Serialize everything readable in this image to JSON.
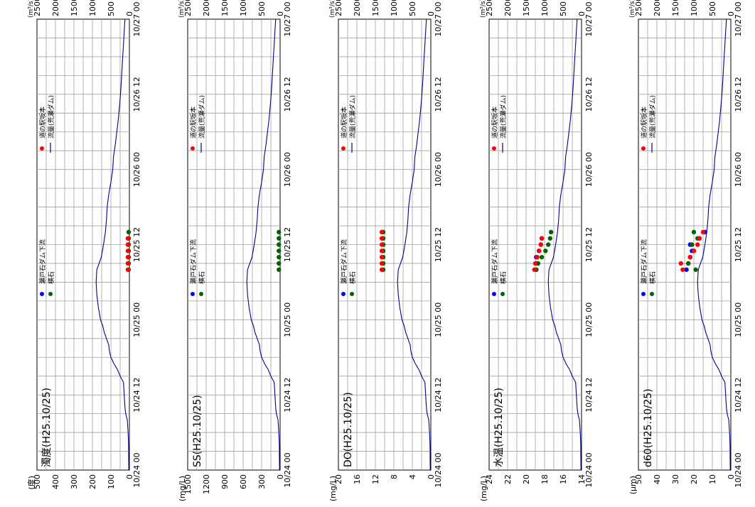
{
  "page": {
    "time_ticks": [
      "10/24 00",
      "10/24 12",
      "10/25 00",
      "10/25 12",
      "10/26 00",
      "10/26 12",
      "10/27 00"
    ],
    "flow_unit": "(m³/s)",
    "flow_ticks": [
      "0",
      "500",
      "1000",
      "1500",
      "2000",
      "2500"
    ],
    "legend": [
      {
        "key": "setoishi",
        "label": "瀬戸石ダム下流",
        "color": "#0000FF",
        "type": "dot"
      },
      {
        "key": "yokoishi",
        "label": "横石",
        "color": "#006400",
        "type": "dot"
      },
      {
        "key": "michinoeki",
        "label": "道の駅坂本",
        "color": "#FF0000",
        "type": "dot"
      },
      {
        "key": "flow",
        "label": "流量(荒瀬ダム)",
        "color": "#00008B",
        "type": "line"
      }
    ],
    "colors": {
      "grid": "#A0A0A0",
      "flow": "#00008B",
      "setoishi": "#0000FF",
      "yokoishi": "#006400",
      "michinoeki": "#FF0000"
    }
  },
  "chart_data": [
    {
      "type": "scatter",
      "title": "濁度(H25.10/25)",
      "ylabel": "(度)",
      "y_ticks": [
        "0",
        "100",
        "200",
        "300",
        "400",
        "500"
      ],
      "ylim": [
        0,
        500
      ],
      "x_time_hours": [
        0,
        72
      ],
      "series": [
        {
          "name": "瀬戸石ダム下流",
          "points": []
        },
        {
          "name": "横石",
          "points": [
            [
              32,
              4
            ],
            [
              33,
              4
            ],
            [
              34,
              4
            ],
            [
              35,
              4
            ],
            [
              36,
              4
            ],
            [
              37,
              4
            ],
            [
              38,
              4
            ]
          ]
        },
        {
          "name": "道の駅坂本",
          "points": [
            [
              32,
              8
            ],
            [
              33,
              8
            ],
            [
              34,
              8
            ],
            [
              35,
              8
            ],
            [
              36,
              8
            ],
            [
              37,
              8
            ]
          ]
        }
      ]
    },
    {
      "type": "scatter",
      "title": "SS(H25.10/25)",
      "ylabel": "(mg/L)",
      "y_ticks": [
        "0",
        "300",
        "600",
        "900",
        "1200",
        "1500"
      ],
      "ylim": [
        0,
        1500
      ],
      "x_time_hours": [
        0,
        72
      ],
      "series": [
        {
          "name": "瀬戸石ダム下流",
          "points": []
        },
        {
          "name": "横石",
          "points": [
            [
              32,
              20
            ],
            [
              33,
              20
            ],
            [
              34,
              20
            ],
            [
              35,
              20
            ],
            [
              36,
              20
            ],
            [
              37,
              20
            ],
            [
              38,
              20
            ]
          ]
        },
        {
          "name": "道の駅坂本",
          "points": []
        }
      ]
    },
    {
      "type": "scatter",
      "title": "DO(H25.10/25)",
      "ylabel": "(mg/L)",
      "y_ticks": [
        "0",
        "4",
        "8",
        "12",
        "16",
        "20"
      ],
      "ylim": [
        0,
        20
      ],
      "x_time_hours": [
        0,
        72
      ],
      "series": [
        {
          "name": "瀬戸石ダム下流",
          "points": []
        },
        {
          "name": "横石",
          "points": [
            [
              32,
              10.3
            ],
            [
              33,
              10.3
            ],
            [
              34,
              10.3
            ],
            [
              35,
              10.3
            ],
            [
              36,
              10.3
            ],
            [
              37,
              10.3
            ],
            [
              38,
              10.3
            ]
          ]
        },
        {
          "name": "道の駅坂本",
          "points": [
            [
              32,
              10.6
            ],
            [
              33,
              10.6
            ],
            [
              34,
              10.6
            ],
            [
              35,
              10.6
            ],
            [
              36,
              10.6
            ],
            [
              37,
              10.6
            ],
            [
              38,
              10.6
            ]
          ]
        }
      ]
    },
    {
      "type": "scatter",
      "title": "水温(H25.10/25)",
      "ylabel": "(mg/L)",
      "y_ticks": [
        "14",
        "16",
        "18",
        "20",
        "22",
        "24"
      ],
      "ylim": [
        14,
        24
      ],
      "x_time_hours": [
        0,
        72
      ],
      "series": [
        {
          "name": "瀬戸石ダム下流",
          "points": [
            [
              32,
              18.9
            ],
            [
              33,
              18.9
            ],
            [
              34,
              18.9
            ],
            [
              35,
              18.6
            ],
            [
              36,
              18.4
            ],
            [
              37,
              18.3
            ]
          ]
        },
        {
          "name": "横石",
          "points": [
            [
              32,
              18.9
            ],
            [
              33,
              18.7
            ],
            [
              34,
              18.3
            ],
            [
              35,
              17.9
            ],
            [
              36,
              17.6
            ],
            [
              37,
              17.4
            ],
            [
              38,
              17.3
            ]
          ]
        },
        {
          "name": "道の駅坂本",
          "points": [
            [
              32,
              19.1
            ],
            [
              33,
              19.0
            ],
            [
              34,
              18.8
            ],
            [
              35,
              18.6
            ],
            [
              36,
              18.4
            ],
            [
              37,
              18.3
            ]
          ]
        }
      ]
    },
    {
      "type": "scatter",
      "title": "d60(H25.10/25)",
      "ylabel": "(μm)",
      "y_ticks": [
        "0",
        "10",
        "20",
        "30",
        "40",
        "50"
      ],
      "ylim": [
        0,
        50
      ],
      "x_time_hours": [
        0,
        72
      ],
      "series": [
        {
          "name": "瀬戸石ダム下流",
          "points": [
            [
              32,
              24
            ],
            [
              33,
              23
            ],
            [
              34,
              22
            ],
            [
              35,
              21
            ],
            [
              36,
              22
            ],
            [
              37,
              17
            ],
            [
              38,
              14
            ]
          ]
        },
        {
          "name": "横石",
          "points": [
            [
              32,
              19
            ],
            [
              33,
              23
            ],
            [
              34,
              22
            ],
            [
              35,
              20
            ],
            [
              36,
              21
            ],
            [
              37,
              18
            ],
            [
              38,
              20
            ]
          ]
        },
        {
          "name": "道の駅坂本",
          "points": [
            [
              32,
              26
            ],
            [
              33,
              27
            ],
            [
              34,
              22
            ],
            [
              35,
              20
            ],
            [
              36,
              18
            ],
            [
              37,
              17
            ],
            [
              38,
              15
            ]
          ]
        }
      ]
    }
  ],
  "flow_data": {
    "name": "流量(荒瀬ダム)",
    "points": [
      [
        0,
        15
      ],
      [
        2,
        20
      ],
      [
        4,
        22
      ],
      [
        6,
        35
      ],
      [
        8,
        55
      ],
      [
        9,
        100
      ],
      [
        10,
        120
      ],
      [
        12,
        140
      ],
      [
        14,
        160
      ],
      [
        15,
        250
      ],
      [
        16,
        320
      ],
      [
        17,
        420
      ],
      [
        18,
        500
      ],
      [
        19,
        540
      ],
      [
        20,
        560
      ],
      [
        21,
        620
      ],
      [
        22,
        680
      ],
      [
        23,
        720
      ],
      [
        24,
        780
      ],
      [
        26,
        840
      ],
      [
        28,
        880
      ],
      [
        30,
        900
      ],
      [
        32,
        880
      ],
      [
        34,
        760
      ],
      [
        36,
        700
      ],
      [
        38,
        650
      ],
      [
        40,
        620
      ],
      [
        42,
        600
      ],
      [
        44,
        560
      ],
      [
        46,
        500
      ],
      [
        48,
        450
      ],
      [
        50,
        430
      ],
      [
        52,
        380
      ],
      [
        54,
        340
      ],
      [
        56,
        300
      ],
      [
        58,
        270
      ],
      [
        60,
        240
      ],
      [
        62,
        220
      ],
      [
        64,
        200
      ],
      [
        66,
        180
      ],
      [
        68,
        160
      ],
      [
        70,
        140
      ],
      [
        72,
        120
      ]
    ]
  }
}
